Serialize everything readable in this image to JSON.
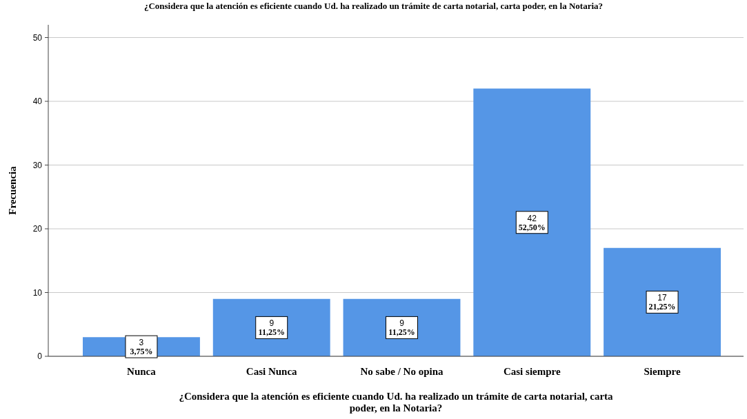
{
  "chart_data": {
    "type": "bar",
    "title": "¿Considera que la atención es eficiente cuando Ud. ha realizado un trámite de carta notarial, carta poder, en la Notaria?",
    "xlabel": "¿Considera que la atención es eficiente cuando Ud. ha realizado un trámite de carta notarial, carta poder, en la Notaria?",
    "ylabel": "Frecuencia",
    "categories": [
      "Nunca",
      "Casi Nunca",
      "No sabe / No opina",
      "Casi siempre",
      "Siempre"
    ],
    "values": [
      3,
      9,
      9,
      42,
      17
    ],
    "color": "#5596e6",
    "value_labels": [
      "3\n3,75%",
      "9\n11,25%",
      "9\n11,25%",
      "42\n52,50%",
      "17\n21,25%"
    ],
    "ylim": [
      0,
      52
    ],
    "yticks": [
      0,
      10,
      20,
      30,
      40,
      50
    ],
    "grid": "y"
  }
}
